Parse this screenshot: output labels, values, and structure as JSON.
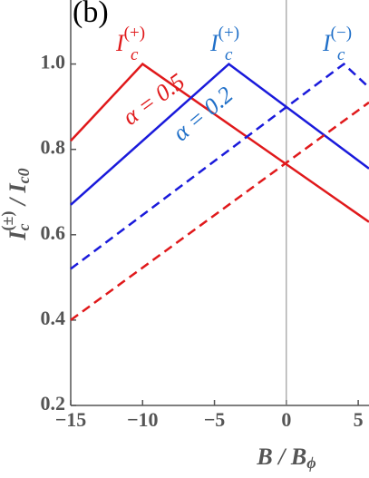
{
  "chart_data": {
    "type": "line",
    "panel_label": "(b)",
    "x_label": {
      "base": "B / B",
      "sub": "ϕ"
    },
    "y_label": {
      "base": "I",
      "sub": "c",
      "sup": "(±)",
      "rest": " / I",
      "sub2": "c0"
    },
    "xlim": [
      -15,
      5.75
    ],
    "ylim": [
      0.2,
      1.15
    ],
    "xticks": [
      {
        "value": -15,
        "label": "−15"
      },
      {
        "value": -10,
        "label": "−10"
      },
      {
        "value": -5,
        "label": "−5"
      },
      0,
      5
    ],
    "yticks": [
      0.2,
      0.4,
      0.6,
      0.8,
      {
        "value": 1,
        "label": "1.0"
      }
    ],
    "vline": 0,
    "series": [
      {
        "color": "#e0191b",
        "dash": false,
        "x": [
          -15,
          -10,
          5.75
        ],
        "values": [
          0.82,
          1.0,
          0.63
        ]
      },
      {
        "color": "#1a1adb",
        "dash": false,
        "x": [
          -15,
          -4,
          5.75
        ],
        "values": [
          0.67,
          1.0,
          0.755
        ]
      },
      {
        "color": "#1a1adb",
        "dash": true,
        "x": [
          -15,
          4,
          5.75
        ],
        "values": [
          0.52,
          1.0,
          0.945
        ]
      },
      {
        "color": "#e0191b",
        "dash": true,
        "x": [
          -15,
          5.75
        ],
        "values": [
          0.4,
          0.91
        ]
      }
    ],
    "annotations": [
      {
        "base": "I",
        "sub": "c",
        "sup": "(+)",
        "color": "#e0191b"
      },
      {
        "base": "I",
        "sub": "c",
        "sup": "(+)",
        "color": "#1f6fc8"
      },
      {
        "base": "I",
        "sub": "c",
        "sup": "(−)",
        "color": "#1f6fc8"
      },
      {
        "base": "α = 0.5",
        "color": "#e0191b"
      },
      {
        "base": "α = 0.2",
        "color": "#1f6fc8"
      }
    ]
  }
}
